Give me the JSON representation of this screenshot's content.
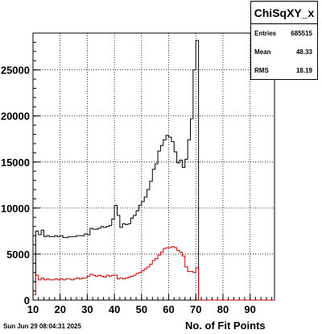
{
  "stats": {
    "title": "ChiSqXY_x",
    "rows": [
      {
        "label": "Entries",
        "value": "685515"
      },
      {
        "label": "Mean",
        "value": "48.33"
      },
      {
        "label": "RMS",
        "value": "18.19"
      }
    ]
  },
  "timestamp": "Sun Jun 29 08:04:31 2025",
  "colors": {
    "series_black": "#000000",
    "series_red": "#cc0000",
    "grid": "#000000"
  },
  "chart_data": {
    "type": "histogram",
    "xlabel": "No. of Fit Points",
    "ylabel": "",
    "xlim": [
      10,
      99
    ],
    "ylim": [
      0,
      29000
    ],
    "grid": true,
    "legend": "none",
    "x_ticks": [
      10,
      20,
      30,
      40,
      50,
      60,
      70,
      80,
      90
    ],
    "y_ticks": [
      0,
      5000,
      10000,
      15000,
      20000,
      25000
    ],
    "bin_width": 1,
    "series": [
      {
        "color": "#000000",
        "x": [
          10,
          11,
          12,
          13,
          14,
          15,
          16,
          17,
          18,
          19,
          20,
          21,
          22,
          23,
          24,
          25,
          26,
          27,
          28,
          29,
          30,
          31,
          32,
          33,
          34,
          35,
          36,
          37,
          38,
          39,
          40,
          41,
          42,
          43,
          44,
          45,
          46,
          47,
          48,
          49,
          50,
          51,
          52,
          53,
          54,
          55,
          56,
          57,
          58,
          59,
          60,
          61,
          62,
          63,
          64,
          65,
          66,
          67,
          68,
          69,
          70,
          71,
          72,
          73,
          74,
          75,
          76,
          77,
          78,
          79,
          80,
          81,
          82,
          83,
          84,
          85,
          86,
          87,
          88,
          89,
          90,
          91,
          92,
          93,
          94,
          95,
          96,
          97,
          98
        ],
        "values": [
          2000,
          7500,
          7100,
          7600,
          6900,
          7000,
          6900,
          6900,
          7000,
          6900,
          7000,
          6800,
          6800,
          6900,
          6900,
          6900,
          7000,
          7000,
          7000,
          7200,
          7100,
          7800,
          7700,
          7700,
          7800,
          8000,
          7900,
          8000,
          8100,
          8800,
          10300,
          9200,
          7900,
          8300,
          8200,
          8300,
          8900,
          9200,
          9700,
          10300,
          10700,
          11200,
          12000,
          12900,
          14200,
          14800,
          16200,
          16800,
          17400,
          17900,
          17700,
          17200,
          16100,
          14900,
          15200,
          14400,
          15300,
          17400,
          19700,
          25000,
          28200,
          0,
          0,
          0,
          0,
          0,
          0,
          0,
          0,
          0,
          0,
          0,
          0,
          0,
          0,
          0,
          0,
          0,
          0,
          0,
          0,
          0,
          0,
          0,
          0,
          0,
          0,
          0,
          0
        ]
      },
      {
        "color": "#cc0000",
        "x": [
          10,
          11,
          12,
          13,
          14,
          15,
          16,
          17,
          18,
          19,
          20,
          21,
          22,
          23,
          24,
          25,
          26,
          27,
          28,
          29,
          30,
          31,
          32,
          33,
          34,
          35,
          36,
          37,
          38,
          39,
          40,
          41,
          42,
          43,
          44,
          45,
          46,
          47,
          48,
          49,
          50,
          51,
          52,
          53,
          54,
          55,
          56,
          57,
          58,
          59,
          60,
          61,
          62,
          63,
          64,
          65,
          66,
          67,
          68,
          69,
          70,
          71,
          72,
          73,
          74,
          75,
          76,
          77,
          78,
          79,
          80,
          81,
          82,
          83,
          84,
          85,
          86,
          87,
          88,
          89,
          90,
          91,
          92,
          93,
          94,
          95,
          96,
          97,
          98
        ],
        "values": [
          600,
          2700,
          2200,
          2400,
          2200,
          2300,
          2200,
          2200,
          2300,
          2200,
          2300,
          2200,
          2300,
          2300,
          2200,
          2300,
          2400,
          2300,
          2400,
          2400,
          2600,
          2800,
          2700,
          2600,
          2700,
          2600,
          2500,
          2700,
          2600,
          2700,
          2700,
          2300,
          2400,
          2300,
          2400,
          2500,
          2600,
          2700,
          2900,
          3000,
          3200,
          3400,
          3600,
          3900,
          4300,
          4500,
          4900,
          5200,
          5600,
          5700,
          5700,
          5800,
          5700,
          5400,
          5200,
          4800,
          3600,
          3100,
          3100,
          3000,
          3500,
          0,
          0,
          0,
          0,
          0,
          0,
          0,
          0,
          0,
          0,
          0,
          0,
          0,
          0,
          0,
          0,
          0,
          0,
          0,
          0,
          0,
          0,
          0,
          0,
          0,
          0,
          0,
          0
        ]
      }
    ]
  }
}
